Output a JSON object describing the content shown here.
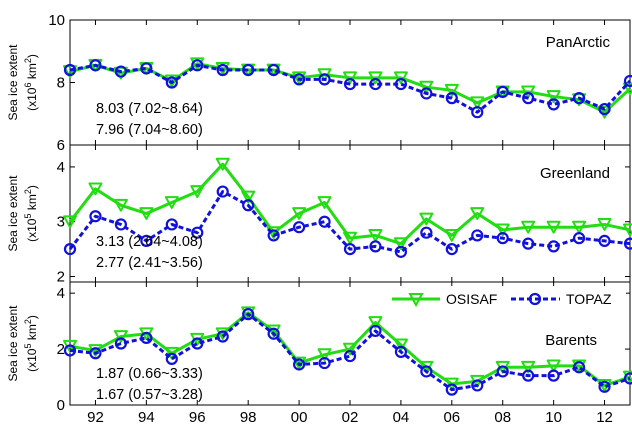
{
  "chart_data": [
    {
      "type": "line",
      "title": "PanArctic",
      "ylabel": "Sea ice extent",
      "yunit_line": "(x10",
      "yunit_exp": "6",
      "yunit_tail": " km",
      "yunit_sq": "2",
      "yunit_end": ")",
      "x": [
        1991,
        1992,
        1993,
        1994,
        1995,
        1996,
        1997,
        1998,
        1999,
        2000,
        2001,
        2002,
        2003,
        2004,
        2005,
        2006,
        2007,
        2008,
        2009,
        2010,
        2011,
        2012,
        2013
      ],
      "xlim": [
        1991,
        2013
      ],
      "ylim": [
        6,
        10
      ],
      "yticks": [
        "6",
        "8",
        "10"
      ],
      "series": [
        {
          "name": "OSISAF",
          "color": "#22dd11",
          "values": [
            8.35,
            8.55,
            8.3,
            8.45,
            8.05,
            8.6,
            8.45,
            8.4,
            8.4,
            8.15,
            8.25,
            8.15,
            8.15,
            8.15,
            7.85,
            7.75,
            7.35,
            7.7,
            7.7,
            7.55,
            7.45,
            7.05,
            7.8
          ]
        },
        {
          "name": "TOPAZ",
          "color": "#1111dd",
          "values": [
            8.4,
            8.55,
            8.35,
            8.45,
            8.0,
            8.55,
            8.4,
            8.4,
            8.4,
            8.1,
            8.1,
            7.95,
            7.95,
            7.95,
            7.65,
            7.5,
            7.05,
            7.7,
            7.5,
            7.3,
            7.5,
            7.15,
            8.05
          ]
        }
      ],
      "annotations": [
        "8.03 (7.02~8.64)",
        "7.96 (7.04~8.60)"
      ]
    },
    {
      "type": "line",
      "title": "Greenland",
      "ylabel": "Sea ice extent",
      "yunit_line": "(x10",
      "yunit_exp": "5",
      "yunit_tail": " km",
      "yunit_sq": "2",
      "yunit_end": ")",
      "x": [
        1991,
        1992,
        1993,
        1994,
        1995,
        1996,
        1997,
        1998,
        1999,
        2000,
        2001,
        2002,
        2003,
        2004,
        2005,
        2006,
        2007,
        2008,
        2009,
        2010,
        2011,
        2012,
        2013
      ],
      "xlim": [
        1991,
        2013
      ],
      "ylim": [
        1.9,
        4.4
      ],
      "yticks": [
        "2",
        "3",
        "4"
      ],
      "series": [
        {
          "name": "OSISAF",
          "color": "#22dd11",
          "values": [
            3.0,
            3.6,
            3.3,
            3.15,
            3.35,
            3.55,
            4.05,
            3.45,
            2.8,
            3.15,
            3.35,
            2.7,
            2.75,
            2.6,
            3.05,
            2.75,
            3.15,
            2.85,
            2.9,
            2.9,
            2.9,
            2.95,
            2.85
          ]
        },
        {
          "name": "TOPAZ",
          "color": "#1111dd",
          "values": [
            2.5,
            3.1,
            2.95,
            2.65,
            2.95,
            2.8,
            3.55,
            3.3,
            2.75,
            2.9,
            3.0,
            2.5,
            2.55,
            2.45,
            2.8,
            2.5,
            2.75,
            2.7,
            2.6,
            2.55,
            2.7,
            2.65,
            2.6
          ]
        }
      ],
      "annotations": [
        "3.13 (2.64~4.08)",
        "2.77 (2.41~3.56)"
      ]
    },
    {
      "type": "line",
      "title": "Barents",
      "ylabel": "Sea ice extent",
      "yunit_line": "(x10",
      "yunit_exp": "5",
      "yunit_tail": " km",
      "yunit_sq": "2",
      "yunit_end": ")",
      "x": [
        1991,
        1992,
        1993,
        1994,
        1995,
        1996,
        1997,
        1998,
        1999,
        2000,
        2001,
        2002,
        2003,
        2004,
        2005,
        2006,
        2007,
        2008,
        2009,
        2010,
        2011,
        2012,
        2013
      ],
      "xlim": [
        1991,
        2013
      ],
      "ylim": [
        0,
        4.4
      ],
      "yticks": [
        "0",
        "2",
        "4"
      ],
      "xticks": [
        "92",
        "94",
        "96",
        "98",
        "00",
        "02",
        "04",
        "06",
        "08",
        "10",
        "12"
      ],
      "xtick_years": [
        1992,
        1994,
        1996,
        1998,
        2000,
        2002,
        2004,
        2006,
        2008,
        2010,
        2012
      ],
      "legend": {
        "position": "top-right",
        "labels": [
          "OSISAF",
          "TOPAZ"
        ]
      },
      "series": [
        {
          "name": "OSISAF",
          "color": "#22dd11",
          "values": [
            2.1,
            1.95,
            2.45,
            2.55,
            1.85,
            2.35,
            2.55,
            3.3,
            2.65,
            1.5,
            1.8,
            2.0,
            2.95,
            2.15,
            1.35,
            0.75,
            0.85,
            1.35,
            1.35,
            1.4,
            1.4,
            0.7,
            1.0
          ]
        },
        {
          "name": "TOPAZ",
          "color": "#1111dd",
          "values": [
            1.95,
            1.85,
            2.2,
            2.4,
            1.65,
            2.2,
            2.45,
            3.25,
            2.55,
            1.45,
            1.5,
            1.75,
            2.65,
            1.9,
            1.2,
            0.55,
            0.7,
            1.2,
            1.05,
            1.05,
            1.35,
            0.65,
            0.95
          ]
        }
      ],
      "annotations": [
        "1.87 (0.66~3.33)",
        "1.67 (0.57~3.28)"
      ]
    }
  ]
}
